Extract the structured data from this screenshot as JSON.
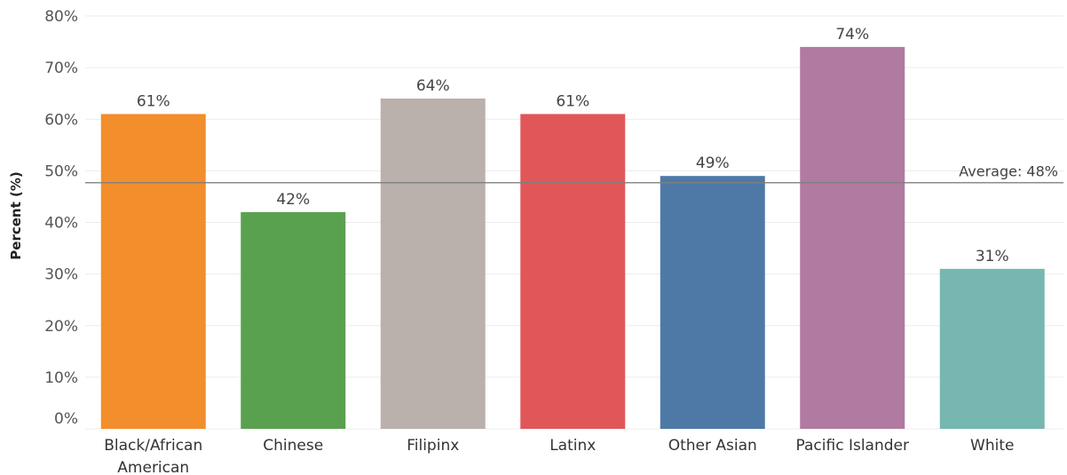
{
  "chart_data": {
    "type": "bar",
    "ylabel": "Percent (%)",
    "xlabel": "",
    "ylim": [
      0,
      80
    ],
    "yticks": [
      0,
      10,
      20,
      30,
      40,
      50,
      60,
      70,
      80
    ],
    "ytick_suffix": "%",
    "grid": "horizontal",
    "categories": [
      [
        "Black/African",
        "American"
      ],
      [
        "Chinese"
      ],
      [
        "Filipinx"
      ],
      [
        "Latinx"
      ],
      [
        "Other Asian"
      ],
      [
        "Pacific Islander"
      ],
      [
        "White"
      ]
    ],
    "values": [
      61,
      42,
      64,
      61,
      49,
      74,
      31
    ],
    "data_labels": [
      "61%",
      "42%",
      "64%",
      "61%",
      "49%",
      "74%",
      "31%"
    ],
    "colors": [
      "#f28e2b",
      "#59a14f",
      "#bab0ac",
      "#e15759",
      "#4e79a7",
      "#b07aa1",
      "#76b7b2"
    ],
    "reference_line": {
      "value": 47.7,
      "label": "Average: 48%",
      "color": "#7f7f7f"
    }
  }
}
